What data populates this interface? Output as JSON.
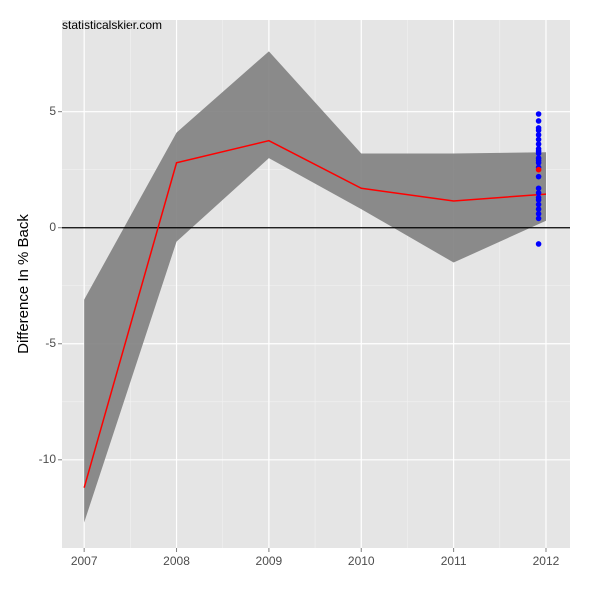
{
  "chart_data": {
    "type": "line",
    "title": "statisticalskier.com",
    "y_label": "Difference In % Back",
    "x": [
      2007,
      2008,
      2009,
      2010,
      2011,
      2012
    ],
    "series": [
      {
        "color": "#ff0000",
        "values": [
          -11.2,
          2.8,
          3.75,
          1.7,
          1.15,
          1.45
        ]
      }
    ],
    "band": {
      "color": "#7f7f7f",
      "upper": [
        -3.1,
        4.1,
        7.6,
        3.2,
        3.2,
        3.25
      ],
      "lower": [
        -12.7,
        -0.6,
        3.0,
        0.8,
        -1.5,
        0.3
      ]
    },
    "points": [
      {
        "color": "#0000ff",
        "x": [
          2011.92,
          2011.92,
          2011.92,
          2011.92,
          2011.92,
          2011.92,
          2011.92,
          2011.92,
          2011.92,
          2011.92,
          2011.92,
          2011.92,
          2011.92,
          2011.92,
          2011.92,
          2011.92,
          2011.92,
          2011.92,
          2011.92,
          2011.92,
          2011.92,
          2011.92,
          2011.92,
          2011.92
        ],
        "values": [
          4.9,
          4.6,
          4.3,
          4.2,
          4.0,
          3.8,
          3.6,
          3.4,
          3.3,
          3.2,
          3.0,
          2.9,
          2.8,
          2.6,
          2.2,
          1.7,
          1.5,
          1.3,
          1.2,
          1.0,
          0.8,
          0.6,
          0.4,
          -0.7
        ]
      },
      {
        "color": "#ff0000",
        "x": [
          2011.92
        ],
        "values": [
          2.5
        ]
      }
    ],
    "hline": 0,
    "xlim": [
      2006.76,
      2012.26
    ],
    "ylim": [
      -13.8,
      8.95
    ],
    "xticks": [
      2007,
      2008,
      2009,
      2010,
      2011,
      2012
    ],
    "yticks": [
      -10,
      -5,
      0,
      5
    ],
    "grid": true
  }
}
